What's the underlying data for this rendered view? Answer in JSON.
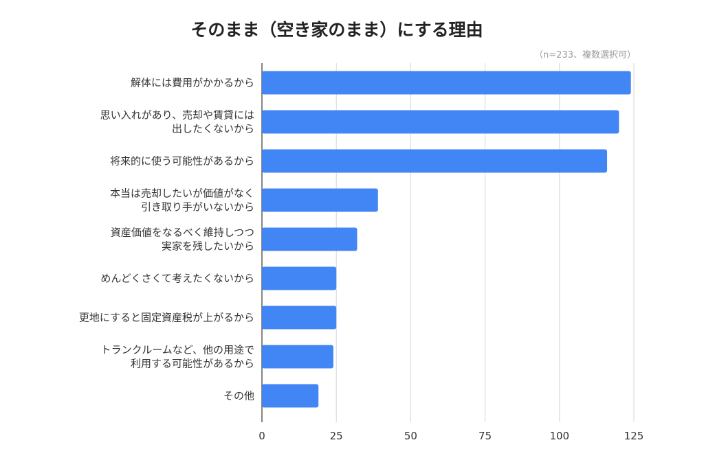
{
  "chart_data": {
    "type": "bar",
    "orientation": "horizontal",
    "title": "そのまま（空き家のまま）にする理由",
    "subtitle": "（n=233、複数選択可）",
    "categories": [
      [
        "解体には費用がかかるから"
      ],
      [
        "思い入れがあり、売却や賃貸には",
        "出したくないから"
      ],
      [
        "将来的に使う可能性があるから"
      ],
      [
        "本当は売却したいが価値がなく",
        "引き取り手がいないから"
      ],
      [
        "資産価値をなるべく維持しつつ",
        "実家を残したいから"
      ],
      [
        "めんどくさくて考えたくないから"
      ],
      [
        "更地にすると固定資産税が上がるから"
      ],
      [
        "トランクルームなど、他の用途で",
        "利用する可能性があるから"
      ],
      [
        "その他"
      ]
    ],
    "values": [
      124,
      120,
      116,
      39,
      32,
      25,
      25,
      24,
      19
    ],
    "xlim": [
      0,
      125
    ],
    "xticks": [
      0,
      25,
      50,
      75,
      100,
      125
    ],
    "grid": true,
    "bar_color": "#4285f4",
    "xlabel": "",
    "ylabel": ""
  }
}
